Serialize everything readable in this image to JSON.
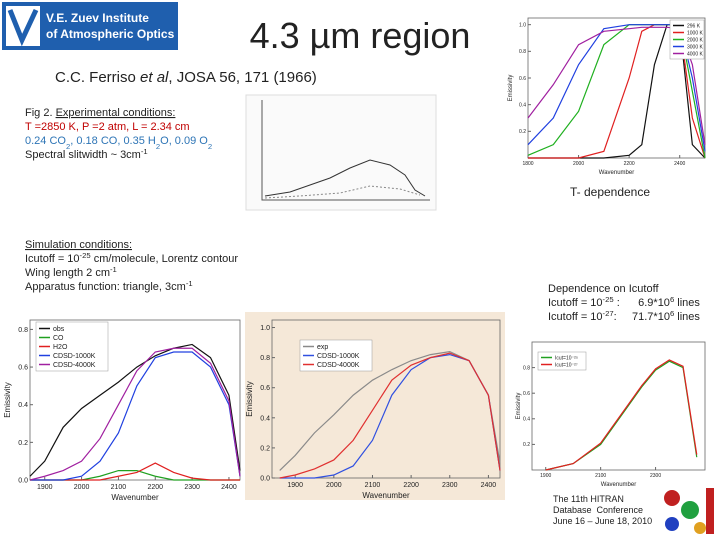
{
  "logo": {
    "lines": [
      "V.E. Zuev Institute",
      "of Atmospheric Optics"
    ]
  },
  "title": "4.3 µm region",
  "citation": {
    "authors": "C.C. Ferriso ",
    "et_al": "et al",
    "source": ", JOSA 56, 171 (1966)"
  },
  "experiment": {
    "label": "Fig 2. ",
    "heading": "Experimental conditions:",
    "lines": [
      {
        "color": "#c00000",
        "segments": [
          "T =2850 K, P =2 atm, L = 2.34 cm"
        ]
      },
      {
        "color": "#2e75b6",
        "segments": [
          "0.24 CO",
          {
            "sub": "2"
          },
          ", 0.18 CO, 0.35 H",
          {
            "sub": "2"
          },
          "O, 0.09 O",
          {
            "sub": "2"
          }
        ]
      },
      {
        "color": "#222222",
        "segments": [
          "Spectral slitwidth ~ 3cm",
          {
            "sup": "-1"
          }
        ]
      }
    ]
  },
  "simulation": {
    "heading": "Simulation conditions:",
    "lines": [
      {
        "color": "#222222",
        "segments": [
          "Icutoff = 10",
          {
            "sup": "-25"
          },
          " cm/molecule, Lorentz contour"
        ]
      },
      {
        "color": "#222222",
        "segments": [
          "Wing length 2 cm",
          {
            "sup": "-1"
          }
        ]
      },
      {
        "color": "#222222",
        "segments": [
          "Apparatus function: triangle, 3cm",
          {
            "sup": "-1"
          }
        ]
      }
    ]
  },
  "t_dependence": "T- dependence",
  "cutoff": {
    "heading": "Dependence on Icutoff",
    "lines": [
      {
        "color": "#222222",
        "segments": [
          "Icutoff = 10",
          {
            "sup": "-25"
          },
          " :      6.9*10",
          {
            "sup": "6"
          },
          " lines"
        ]
      },
      {
        "color": "#222222",
        "segments": [
          "Icutoff = 10",
          {
            "sup": "-27"
          },
          ":     71.7*10",
          {
            "sup": "6"
          },
          " lines"
        ]
      }
    ]
  },
  "conference": {
    "lines": [
      "The 11th HITRAN",
      "Database  Conference",
      "June 16 – June 18, 2010"
    ]
  },
  "plots": [
    {
      "type": "line",
      "xlabel": "Wavenumber",
      "ylabel": "Emissivity",
      "xlim": [
        1800,
        2500
      ],
      "ylim": [
        0,
        1.05
      ],
      "xticks": [
        1800,
        2000,
        2200,
        2400
      ],
      "yticks": [
        0.2,
        0.4,
        0.6,
        0.8,
        {
          "value": 1,
          "label": "1.0"
        }
      ],
      "x": [
        1800,
        1900,
        2000,
        2100,
        2200,
        2250,
        2300,
        2350,
        2400,
        2450,
        2500
      ],
      "series": [
        {
          "name": "296 K",
          "color": "#111111",
          "values": [
            0,
            0,
            0,
            0,
            0.02,
            0.1,
            0.7,
            1,
            1,
            0.1,
            0
          ]
        },
        {
          "name": "1000 K",
          "color": "#e02020",
          "values": [
            0,
            0,
            0,
            0.05,
            0.6,
            0.95,
            1,
            1,
            1,
            0.3,
            0
          ]
        },
        {
          "name": "2000 K",
          "color": "#20b020",
          "values": [
            0.02,
            0.1,
            0.35,
            0.85,
            1,
            1,
            1,
            1,
            1,
            0.5,
            0
          ]
        },
        {
          "name": "3000 K",
          "color": "#2040e0",
          "values": [
            0.1,
            0.3,
            0.7,
            0.97,
            1,
            1,
            1,
            1,
            1,
            0.6,
            0.05
          ]
        },
        {
          "name": "4000 K",
          "color": "#a020a0",
          "values": [
            0.3,
            0.55,
            0.85,
            0.95,
            0.97,
            0.98,
            0.98,
            0.98,
            0.97,
            0.7,
            0.1
          ]
        }
      ]
    },
    {
      "type": "line",
      "xlabel": "Wavenumber",
      "ylabel": "Emissivity",
      "xlim": [
        1860,
        2430
      ],
      "ylim": [
        0,
        0.85
      ],
      "xticks": [
        1900,
        2000,
        2100,
        2200,
        2300,
        2400
      ],
      "yticks": [
        {
          "value": 0,
          "label": "0.0"
        },
        0.2,
        0.4,
        0.6,
        0.8
      ],
      "x": [
        1860,
        1900,
        1950,
        2000,
        2050,
        2100,
        2150,
        2200,
        2250,
        2300,
        2350,
        2400,
        2430
      ],
      "series": [
        {
          "name": "obs",
          "color": "#111111",
          "values": [
            0.02,
            0.1,
            0.28,
            0.38,
            0.45,
            0.52,
            0.6,
            0.66,
            0.7,
            0.72,
            0.65,
            0.45,
            0.05
          ]
        },
        {
          "name": "CO",
          "color": "#20a020",
          "values": [
            0,
            0,
            0,
            0,
            0.02,
            0.05,
            0.05,
            0.02,
            0,
            0,
            0,
            0,
            0
          ]
        },
        {
          "name": "H2O",
          "color": "#e02020",
          "values": [
            0,
            0,
            0,
            0,
            0,
            0.02,
            0.04,
            0.09,
            0.04,
            0.01,
            0,
            0,
            0
          ]
        },
        {
          "name": "CDSD-1000K",
          "color": "#2040e0",
          "values": [
            0,
            0,
            0,
            0.02,
            0.1,
            0.25,
            0.5,
            0.65,
            0.68,
            0.68,
            0.6,
            0.4,
            0.02
          ]
        },
        {
          "name": "CDSD-4000K",
          "color": "#a020a0",
          "values": [
            0,
            0.02,
            0.05,
            0.1,
            0.22,
            0.4,
            0.58,
            0.68,
            0.7,
            0.7,
            0.62,
            0.42,
            0.02
          ]
        }
      ]
    },
    {
      "type": "line",
      "xlabel": "Wavenumber",
      "ylabel": "Emissivity",
      "xlim": [
        1840,
        2430
      ],
      "ylim": [
        0,
        1.05
      ],
      "xticks": [
        1900,
        2000,
        2100,
        2200,
        2300,
        2400
      ],
      "yticks": [
        {
          "value": 0,
          "label": "0.0"
        },
        0.2,
        0.4,
        0.6,
        0.8,
        {
          "value": 1,
          "label": "1.0"
        }
      ],
      "x": [
        1860,
        1900,
        1950,
        2000,
        2050,
        2100,
        2150,
        2200,
        2250,
        2300,
        2350,
        2400,
        2430
      ],
      "series": [
        {
          "name": "exp",
          "color": "#8a8a8a",
          "values": [
            0.05,
            0.15,
            0.3,
            0.42,
            0.55,
            0.65,
            0.72,
            0.78,
            0.82,
            0.84,
            0.78,
            0.55,
            0.1
          ]
        },
        {
          "name": "CDSD-1000K",
          "color": "#3050e0",
          "values": [
            0,
            0,
            0,
            0.02,
            0.08,
            0.25,
            0.55,
            0.72,
            0.8,
            0.82,
            0.78,
            0.55,
            0.05
          ]
        },
        {
          "name": "CDSD-4000K",
          "color": "#e03030",
          "values": [
            0,
            0.02,
            0.06,
            0.12,
            0.25,
            0.45,
            0.65,
            0.75,
            0.8,
            0.83,
            0.78,
            0.55,
            0.05
          ]
        }
      ]
    },
    {
      "type": "line",
      "xlabel": "Wavenumber",
      "ylabel": "Emissivity",
      "xlim": [
        1850,
        2480
      ],
      "ylim": [
        0,
        1
      ],
      "xticks": [
        1900,
        2100,
        2300
      ],
      "yticks": [
        0.2,
        0.4,
        0.6,
        0.8
      ],
      "x": [
        1900,
        2000,
        2100,
        2200,
        2250,
        2300,
        2350,
        2400,
        2450
      ],
      "series": [
        {
          "name": "Icut=10⁻²⁵",
          "color": "#20a020",
          "values": [
            0,
            0.05,
            0.2,
            0.5,
            0.65,
            0.78,
            0.85,
            0.8,
            0.1
          ]
        },
        {
          "name": "Icut=10⁻²⁷",
          "color": "#e02020",
          "values": [
            0,
            0.05,
            0.21,
            0.51,
            0.66,
            0.79,
            0.86,
            0.81,
            0.12
          ]
        }
      ]
    }
  ]
}
